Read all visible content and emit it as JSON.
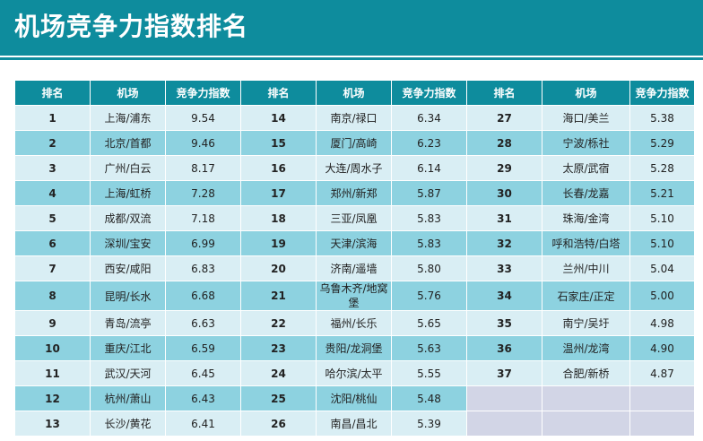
{
  "title": "机场竞争力指数排名",
  "headers": {
    "rank": "排名",
    "airport": "机场",
    "score": "竞争力指数"
  },
  "colors": {
    "banner": "#0e8c9d",
    "row_light": "#d9eef4",
    "row_dark": "#8dd2e0",
    "empty_cell": "#d2d5e6"
  },
  "rows": [
    [
      {
        "rank": "1",
        "airport": "上海/浦东",
        "score": "9.54"
      },
      {
        "rank": "14",
        "airport": "南京/禄口",
        "score": "6.34"
      },
      {
        "rank": "27",
        "airport": "海口/美兰",
        "score": "5.38"
      }
    ],
    [
      {
        "rank": "2",
        "airport": "北京/首都",
        "score": "9.46"
      },
      {
        "rank": "15",
        "airport": "厦门/高崎",
        "score": "6.23"
      },
      {
        "rank": "28",
        "airport": "宁波/栎社",
        "score": "5.29"
      }
    ],
    [
      {
        "rank": "3",
        "airport": "广州/白云",
        "score": "8.17"
      },
      {
        "rank": "16",
        "airport": "大连/周水子",
        "score": "6.14"
      },
      {
        "rank": "29",
        "airport": "太原/武宿",
        "score": "5.28"
      }
    ],
    [
      {
        "rank": "4",
        "airport": "上海/虹桥",
        "score": "7.28"
      },
      {
        "rank": "17",
        "airport": "郑州/新郑",
        "score": "5.87"
      },
      {
        "rank": "30",
        "airport": "长春/龙嘉",
        "score": "5.21"
      }
    ],
    [
      {
        "rank": "5",
        "airport": "成都/双流",
        "score": "7.18"
      },
      {
        "rank": "18",
        "airport": "三亚/凤凰",
        "score": "5.83"
      },
      {
        "rank": "31",
        "airport": "珠海/金湾",
        "score": "5.10"
      }
    ],
    [
      {
        "rank": "6",
        "airport": "深圳/宝安",
        "score": "6.99"
      },
      {
        "rank": "19",
        "airport": "天津/滨海",
        "score": "5.83"
      },
      {
        "rank": "32",
        "airport": "呼和浩特/白塔",
        "score": "5.10"
      }
    ],
    [
      {
        "rank": "7",
        "airport": "西安/咸阳",
        "score": "6.83"
      },
      {
        "rank": "20",
        "airport": "济南/遥墙",
        "score": "5.80"
      },
      {
        "rank": "33",
        "airport": "兰州/中川",
        "score": "5.04"
      }
    ],
    [
      {
        "rank": "8",
        "airport": "昆明/长水",
        "score": "6.68"
      },
      {
        "rank": "21",
        "airport": "乌鲁木齐/地窝堡",
        "score": "5.76"
      },
      {
        "rank": "34",
        "airport": "石家庄/正定",
        "score": "5.00"
      }
    ],
    [
      {
        "rank": "9",
        "airport": "青岛/流亭",
        "score": "6.63"
      },
      {
        "rank": "22",
        "airport": "福州/长乐",
        "score": "5.65"
      },
      {
        "rank": "35",
        "airport": "南宁/吴圩",
        "score": "4.98"
      }
    ],
    [
      {
        "rank": "10",
        "airport": "重庆/江北",
        "score": "6.59"
      },
      {
        "rank": "23",
        "airport": "贵阳/龙洞堡",
        "score": "5.63"
      },
      {
        "rank": "36",
        "airport": "温州/龙湾",
        "score": "4.90"
      }
    ],
    [
      {
        "rank": "11",
        "airport": "武汉/天河",
        "score": "6.45"
      },
      {
        "rank": "24",
        "airport": "哈尔滨/太平",
        "score": "5.55"
      },
      {
        "rank": "37",
        "airport": "合肥/新桥",
        "score": "4.87"
      }
    ],
    [
      {
        "rank": "12",
        "airport": "杭州/萧山",
        "score": "6.43"
      },
      {
        "rank": "25",
        "airport": "沈阳/桃仙",
        "score": "5.48"
      },
      null
    ],
    [
      {
        "rank": "13",
        "airport": "长沙/黄花",
        "score": "6.41"
      },
      {
        "rank": "26",
        "airport": "南昌/昌北",
        "score": "5.39"
      },
      null
    ]
  ]
}
